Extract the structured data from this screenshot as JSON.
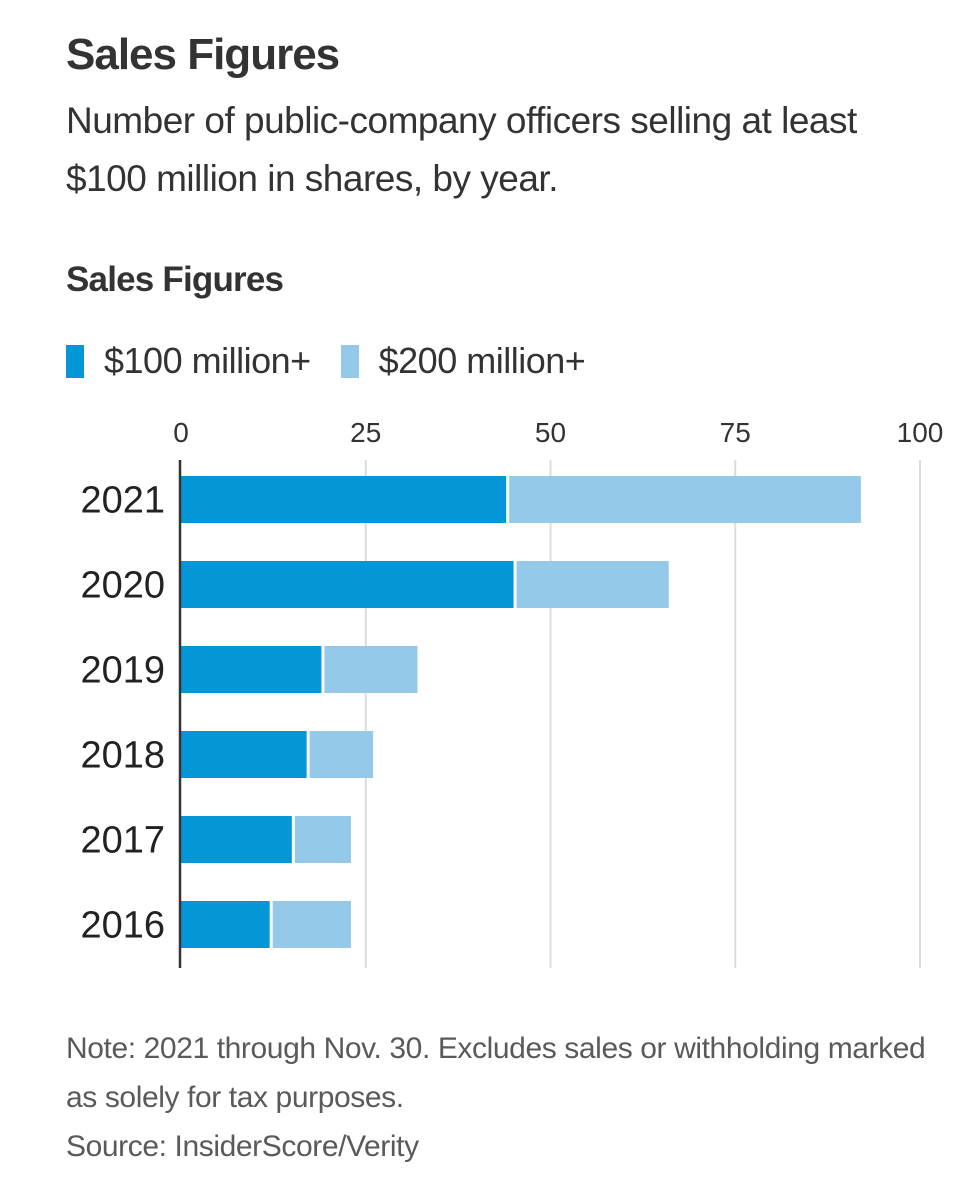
{
  "headline": "Sales Figures",
  "dek": "Number of public-company officers selling at least $100 million in shares, by year.",
  "chart_data": {
    "type": "bar",
    "orientation": "horizontal",
    "stacked": true,
    "title": "Sales Figures",
    "xlabel": "",
    "ylabel": "",
    "xlim": [
      0,
      100
    ],
    "xticks": [
      0,
      25,
      50,
      75,
      100
    ],
    "grid": true,
    "legend_position": "top-left",
    "categories": [
      "2021",
      "2020",
      "2019",
      "2018",
      "2017",
      "2016"
    ],
    "series": [
      {
        "name": "$100 million+",
        "color": "#0596d8",
        "values": [
          44,
          45,
          19,
          17,
          15,
          12
        ]
      },
      {
        "name": "$200 million+",
        "color": "#95c9ea",
        "values": [
          48,
          21,
          13,
          9,
          8,
          11
        ]
      }
    ],
    "totals": [
      92,
      66,
      32,
      26,
      23,
      23
    ]
  },
  "notes": {
    "note": "Note: 2021 through Nov. 30. Excludes sales or withholding marked as solely for tax purposes.",
    "source": "Source: InsiderScore/Verity"
  }
}
